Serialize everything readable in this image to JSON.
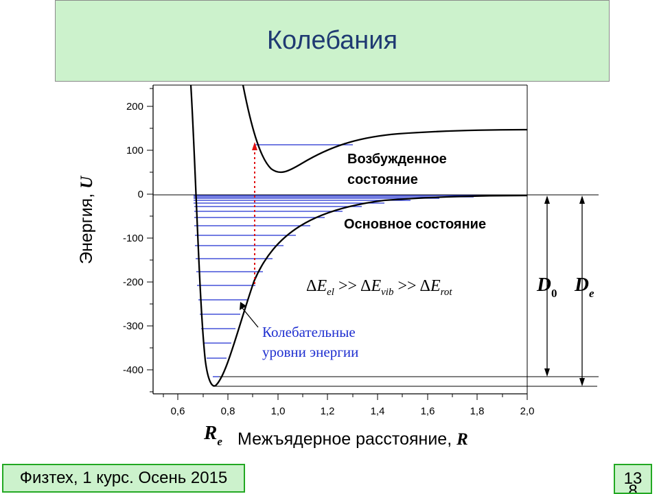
{
  "slide": {
    "title": "Колебания",
    "footer": "Физтех, 1 курс. Осень 2015",
    "page_number": "13",
    "page_number_overflow": "8"
  },
  "figure": {
    "y_axis_label_text": "Энергия, ",
    "y_axis_label_symbol": "U",
    "x_axis_label_text": "Межъядерное расстояние, ",
    "x_axis_label_symbol": "R",
    "y_ticks": [
      "200",
      "100",
      "0",
      "-100",
      "-200",
      "-300",
      "-400"
    ],
    "x_ticks": [
      "0,6",
      "0,8",
      "1,0",
      "1,2",
      "1,4",
      "1,6",
      "1,8",
      "2,0"
    ],
    "label_excited_line1": "Возбужденное",
    "label_excited_line2": "состояние",
    "label_ground": "Основное состояние",
    "label_levels_line1": "Колебательные",
    "label_levels_line2": "уровни энергии",
    "re_symbol": "R",
    "re_sub": "e",
    "d0_symbol": "D",
    "d0_sub": "0",
    "de_symbol": "D",
    "de_sub": "e",
    "delta": "Δ",
    "e_letter": "E",
    "sub_el": "el",
    "sub_vib": "vib",
    "sub_rot": "rot",
    "gg": ">>"
  }
}
